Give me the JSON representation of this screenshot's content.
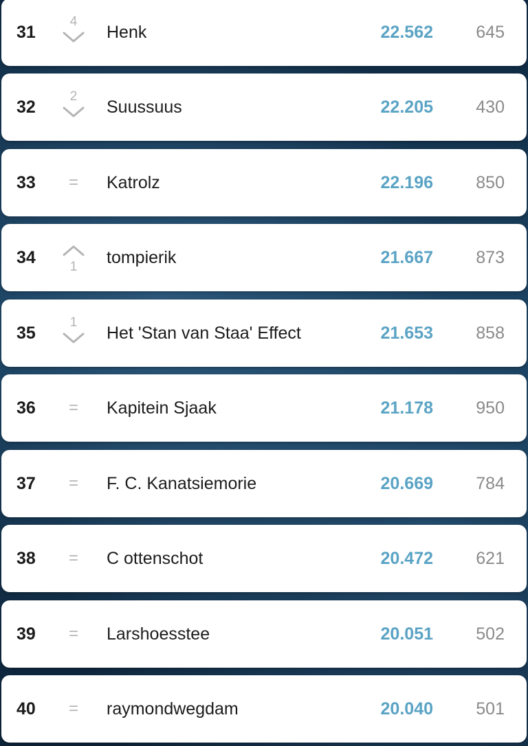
{
  "accent_color": "#5aa3c4",
  "rows": [
    {
      "rank": "31",
      "movement": "down",
      "movement_value": "4",
      "name": "Henk",
      "points": "22.562",
      "score": "645"
    },
    {
      "rank": "32",
      "movement": "down",
      "movement_value": "2",
      "name": "Suussuus",
      "points": "22.205",
      "score": "430"
    },
    {
      "rank": "33",
      "movement": "same",
      "movement_value": "=",
      "name": "Katrolz",
      "points": "22.196",
      "score": "850"
    },
    {
      "rank": "34",
      "movement": "up",
      "movement_value": "1",
      "name": "tompierik",
      "points": "21.667",
      "score": "873"
    },
    {
      "rank": "35",
      "movement": "down",
      "movement_value": "1",
      "name": "Het 'Stan van Staa' Effect",
      "points": "21.653",
      "score": "858"
    },
    {
      "rank": "36",
      "movement": "same",
      "movement_value": "=",
      "name": "Kapitein Sjaak",
      "points": "21.178",
      "score": "950"
    },
    {
      "rank": "37",
      "movement": "same",
      "movement_value": "=",
      "name": "F. C. Kanatsiemorie",
      "points": "20.669",
      "score": "784"
    },
    {
      "rank": "38",
      "movement": "same",
      "movement_value": "=",
      "name": "C ottenschot",
      "points": "20.472",
      "score": "621"
    },
    {
      "rank": "39",
      "movement": "same",
      "movement_value": "=",
      "name": "Larshoesstee",
      "points": "20.051",
      "score": "502"
    },
    {
      "rank": "40",
      "movement": "same",
      "movement_value": "=",
      "name": "raymondwegdam",
      "points": "20.040",
      "score": "501"
    }
  ]
}
